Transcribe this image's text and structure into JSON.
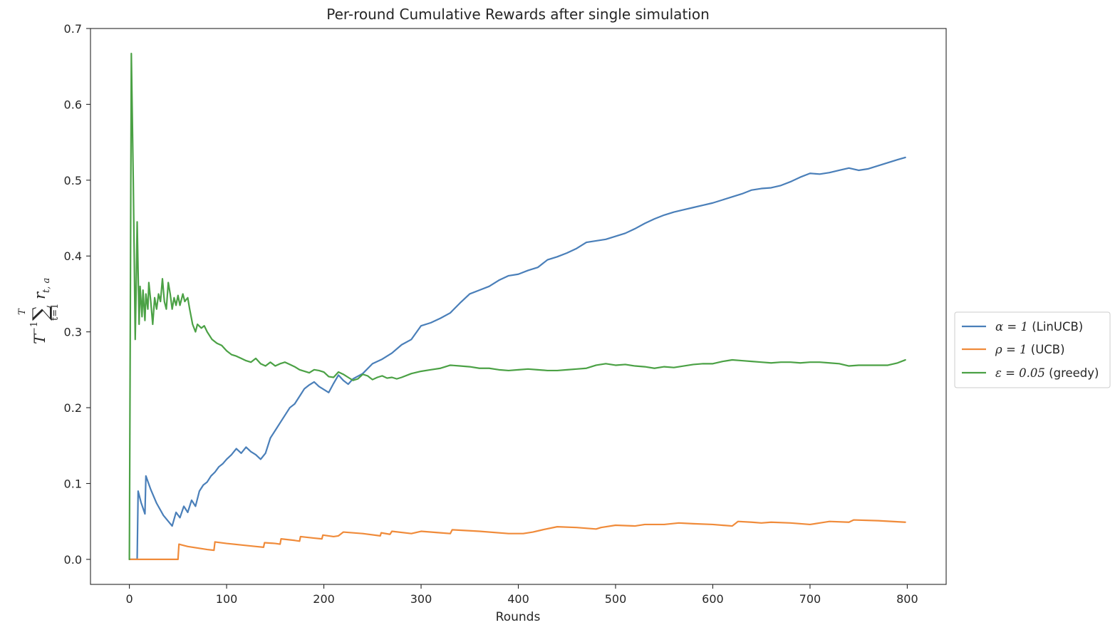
{
  "chart_data": {
    "type": "line",
    "title": "Per-round Cumulative Rewards after single simulation",
    "xlabel": "Rounds",
    "ylabel": {
      "prefix": "T",
      "exponent": "−1",
      "sum_symbol": "∑",
      "sum_upper": "T",
      "sum_lower": "t=1",
      "term": "r",
      "term_sub": "t, a"
    },
    "xlim": [
      -40,
      840
    ],
    "ylim": [
      -0.033,
      0.7
    ],
    "xticks": [
      0,
      100,
      200,
      300,
      400,
      500,
      600,
      700,
      800
    ],
    "xtick_labels": [
      "0",
      "100",
      "200",
      "300",
      "400",
      "500",
      "600",
      "700",
      "800"
    ],
    "yticks": [
      0.0,
      0.1,
      0.2,
      0.3,
      0.4,
      0.5,
      0.6,
      0.7
    ],
    "ytick_labels": [
      "0.0",
      "0.1",
      "0.2",
      "0.3",
      "0.4",
      "0.5",
      "0.6",
      "0.7"
    ],
    "grid": false,
    "legend_position": "center-right, outside plot",
    "series": [
      {
        "name": "α = 1 (LinUCB)",
        "legend_math": "α = 1",
        "legend_rest": " (LinUCB)",
        "color": "#4a7fb9",
        "points": [
          [
            0,
            0.0
          ],
          [
            8,
            0.0
          ],
          [
            9,
            0.09
          ],
          [
            12,
            0.075
          ],
          [
            16,
            0.06
          ],
          [
            17,
            0.11
          ],
          [
            22,
            0.092
          ],
          [
            28,
            0.074
          ],
          [
            35,
            0.058
          ],
          [
            44,
            0.044
          ],
          [
            48,
            0.062
          ],
          [
            52,
            0.055
          ],
          [
            56,
            0.07
          ],
          [
            60,
            0.062
          ],
          [
            64,
            0.078
          ],
          [
            68,
            0.07
          ],
          [
            72,
            0.09
          ],
          [
            76,
            0.098
          ],
          [
            80,
            0.102
          ],
          [
            84,
            0.11
          ],
          [
            88,
            0.115
          ],
          [
            92,
            0.122
          ],
          [
            96,
            0.126
          ],
          [
            100,
            0.132
          ],
          [
            105,
            0.138
          ],
          [
            110,
            0.146
          ],
          [
            115,
            0.14
          ],
          [
            120,
            0.148
          ],
          [
            125,
            0.142
          ],
          [
            130,
            0.138
          ],
          [
            135,
            0.132
          ],
          [
            140,
            0.14
          ],
          [
            145,
            0.16
          ],
          [
            150,
            0.17
          ],
          [
            155,
            0.18
          ],
          [
            160,
            0.19
          ],
          [
            165,
            0.2
          ],
          [
            170,
            0.205
          ],
          [
            175,
            0.215
          ],
          [
            180,
            0.225
          ],
          [
            185,
            0.23
          ],
          [
            190,
            0.234
          ],
          [
            195,
            0.228
          ],
          [
            200,
            0.224
          ],
          [
            205,
            0.22
          ],
          [
            210,
            0.232
          ],
          [
            215,
            0.243
          ],
          [
            220,
            0.236
          ],
          [
            225,
            0.231
          ],
          [
            230,
            0.238
          ],
          [
            240,
            0.245
          ],
          [
            250,
            0.258
          ],
          [
            260,
            0.264
          ],
          [
            270,
            0.272
          ],
          [
            280,
            0.283
          ],
          [
            290,
            0.29
          ],
          [
            300,
            0.308
          ],
          [
            310,
            0.312
          ],
          [
            320,
            0.318
          ],
          [
            330,
            0.325
          ],
          [
            340,
            0.338
          ],
          [
            350,
            0.35
          ],
          [
            360,
            0.355
          ],
          [
            370,
            0.36
          ],
          [
            380,
            0.368
          ],
          [
            390,
            0.374
          ],
          [
            400,
            0.376
          ],
          [
            410,
            0.381
          ],
          [
            420,
            0.385
          ],
          [
            430,
            0.395
          ],
          [
            440,
            0.399
          ],
          [
            450,
            0.404
          ],
          [
            460,
            0.41
          ],
          [
            470,
            0.418
          ],
          [
            480,
            0.42
          ],
          [
            490,
            0.422
          ],
          [
            500,
            0.426
          ],
          [
            510,
            0.43
          ],
          [
            520,
            0.436
          ],
          [
            530,
            0.443
          ],
          [
            540,
            0.449
          ],
          [
            550,
            0.454
          ],
          [
            560,
            0.458
          ],
          [
            570,
            0.461
          ],
          [
            580,
            0.464
          ],
          [
            590,
            0.467
          ],
          [
            600,
            0.47
          ],
          [
            610,
            0.474
          ],
          [
            620,
            0.478
          ],
          [
            630,
            0.482
          ],
          [
            640,
            0.487
          ],
          [
            650,
            0.489
          ],
          [
            660,
            0.49
          ],
          [
            670,
            0.493
          ],
          [
            680,
            0.498
          ],
          [
            690,
            0.504
          ],
          [
            700,
            0.509
          ],
          [
            710,
            0.508
          ],
          [
            720,
            0.51
          ],
          [
            730,
            0.513
          ],
          [
            740,
            0.516
          ],
          [
            750,
            0.513
          ],
          [
            760,
            0.515
          ],
          [
            770,
            0.519
          ],
          [
            780,
            0.523
          ],
          [
            790,
            0.527
          ],
          [
            798,
            0.53
          ]
        ]
      },
      {
        "name": "ρ = 1 (UCB)",
        "legend_math": "ρ = 1",
        "legend_rest": " (UCB)",
        "color": "#f08b3a",
        "points": [
          [
            0,
            0.0
          ],
          [
            50,
            0.0
          ],
          [
            51,
            0.02
          ],
          [
            60,
            0.017
          ],
          [
            70,
            0.015
          ],
          [
            80,
            0.013
          ],
          [
            87,
            0.012
          ],
          [
            88,
            0.023
          ],
          [
            100,
            0.021
          ],
          [
            115,
            0.019
          ],
          [
            130,
            0.017
          ],
          [
            138,
            0.016
          ],
          [
            139,
            0.022
          ],
          [
            150,
            0.021
          ],
          [
            155,
            0.02
          ],
          [
            156,
            0.027
          ],
          [
            170,
            0.025
          ],
          [
            175,
            0.024
          ],
          [
            176,
            0.03
          ],
          [
            190,
            0.028
          ],
          [
            198,
            0.027
          ],
          [
            199,
            0.032
          ],
          [
            210,
            0.03
          ],
          [
            215,
            0.031
          ],
          [
            220,
            0.036
          ],
          [
            240,
            0.034
          ],
          [
            258,
            0.031
          ],
          [
            259,
            0.035
          ],
          [
            268,
            0.033
          ],
          [
            270,
            0.037
          ],
          [
            290,
            0.034
          ],
          [
            300,
            0.037
          ],
          [
            320,
            0.035
          ],
          [
            330,
            0.034
          ],
          [
            332,
            0.039
          ],
          [
            360,
            0.037
          ],
          [
            390,
            0.034
          ],
          [
            405,
            0.034
          ],
          [
            415,
            0.036
          ],
          [
            425,
            0.039
          ],
          [
            440,
            0.043
          ],
          [
            460,
            0.042
          ],
          [
            480,
            0.04
          ],
          [
            485,
            0.042
          ],
          [
            500,
            0.045
          ],
          [
            520,
            0.044
          ],
          [
            530,
            0.046
          ],
          [
            550,
            0.046
          ],
          [
            565,
            0.048
          ],
          [
            580,
            0.047
          ],
          [
            600,
            0.046
          ],
          [
            620,
            0.044
          ],
          [
            626,
            0.05
          ],
          [
            640,
            0.049
          ],
          [
            650,
            0.048
          ],
          [
            660,
            0.049
          ],
          [
            680,
            0.048
          ],
          [
            700,
            0.046
          ],
          [
            710,
            0.048
          ],
          [
            720,
            0.05
          ],
          [
            740,
            0.049
          ],
          [
            745,
            0.052
          ],
          [
            770,
            0.051
          ],
          [
            798,
            0.049
          ]
        ]
      },
      {
        "name": "ε = 0.05 (greedy)",
        "legend_math": "ε = 0.05",
        "legend_rest": " (greedy)",
        "color": "#4ba145",
        "points": [
          [
            0,
            0.0
          ],
          [
            2,
            0.667
          ],
          [
            4,
            0.5
          ],
          [
            5,
            0.4
          ],
          [
            6,
            0.29
          ],
          [
            7,
            0.36
          ],
          [
            8,
            0.445
          ],
          [
            10,
            0.31
          ],
          [
            11,
            0.36
          ],
          [
            13,
            0.32
          ],
          [
            14,
            0.355
          ],
          [
            16,
            0.315
          ],
          [
            17,
            0.35
          ],
          [
            19,
            0.33
          ],
          [
            20,
            0.365
          ],
          [
            22,
            0.34
          ],
          [
            24,
            0.31
          ],
          [
            26,
            0.345
          ],
          [
            28,
            0.33
          ],
          [
            30,
            0.35
          ],
          [
            32,
            0.34
          ],
          [
            34,
            0.37
          ],
          [
            36,
            0.34
          ],
          [
            38,
            0.33
          ],
          [
            40,
            0.365
          ],
          [
            42,
            0.35
          ],
          [
            44,
            0.33
          ],
          [
            46,
            0.345
          ],
          [
            48,
            0.335
          ],
          [
            50,
            0.348
          ],
          [
            52,
            0.335
          ],
          [
            55,
            0.35
          ],
          [
            57,
            0.34
          ],
          [
            60,
            0.345
          ],
          [
            62,
            0.33
          ],
          [
            65,
            0.31
          ],
          [
            68,
            0.3
          ],
          [
            70,
            0.31
          ],
          [
            74,
            0.305
          ],
          [
            77,
            0.308
          ],
          [
            80,
            0.3
          ],
          [
            85,
            0.29
          ],
          [
            90,
            0.285
          ],
          [
            95,
            0.282
          ],
          [
            100,
            0.275
          ],
          [
            105,
            0.27
          ],
          [
            110,
            0.268
          ],
          [
            115,
            0.265
          ],
          [
            120,
            0.262
          ],
          [
            125,
            0.26
          ],
          [
            130,
            0.265
          ],
          [
            135,
            0.258
          ],
          [
            140,
            0.255
          ],
          [
            145,
            0.26
          ],
          [
            150,
            0.255
          ],
          [
            155,
            0.258
          ],
          [
            160,
            0.26
          ],
          [
            165,
            0.257
          ],
          [
            170,
            0.254
          ],
          [
            175,
            0.25
          ],
          [
            180,
            0.248
          ],
          [
            185,
            0.246
          ],
          [
            190,
            0.25
          ],
          [
            195,
            0.249
          ],
          [
            200,
            0.247
          ],
          [
            205,
            0.241
          ],
          [
            210,
            0.24
          ],
          [
            215,
            0.247
          ],
          [
            220,
            0.244
          ],
          [
            225,
            0.24
          ],
          [
            230,
            0.236
          ],
          [
            235,
            0.238
          ],
          [
            240,
            0.244
          ],
          [
            245,
            0.242
          ],
          [
            250,
            0.237
          ],
          [
            255,
            0.24
          ],
          [
            260,
            0.242
          ],
          [
            265,
            0.239
          ],
          [
            270,
            0.24
          ],
          [
            275,
            0.238
          ],
          [
            280,
            0.24
          ],
          [
            290,
            0.245
          ],
          [
            300,
            0.248
          ],
          [
            310,
            0.25
          ],
          [
            320,
            0.252
          ],
          [
            330,
            0.256
          ],
          [
            340,
            0.255
          ],
          [
            350,
            0.254
          ],
          [
            360,
            0.252
          ],
          [
            370,
            0.252
          ],
          [
            380,
            0.25
          ],
          [
            390,
            0.249
          ],
          [
            400,
            0.25
          ],
          [
            410,
            0.251
          ],
          [
            420,
            0.25
          ],
          [
            430,
            0.249
          ],
          [
            440,
            0.249
          ],
          [
            450,
            0.25
          ],
          [
            460,
            0.251
          ],
          [
            470,
            0.252
          ],
          [
            480,
            0.256
          ],
          [
            490,
            0.258
          ],
          [
            500,
            0.256
          ],
          [
            510,
            0.257
          ],
          [
            520,
            0.255
          ],
          [
            530,
            0.254
          ],
          [
            540,
            0.252
          ],
          [
            550,
            0.254
          ],
          [
            560,
            0.253
          ],
          [
            570,
            0.255
          ],
          [
            580,
            0.257
          ],
          [
            590,
            0.258
          ],
          [
            600,
            0.258
          ],
          [
            610,
            0.261
          ],
          [
            620,
            0.263
          ],
          [
            630,
            0.262
          ],
          [
            640,
            0.261
          ],
          [
            650,
            0.26
          ],
          [
            660,
            0.259
          ],
          [
            670,
            0.26
          ],
          [
            680,
            0.26
          ],
          [
            690,
            0.259
          ],
          [
            700,
            0.26
          ],
          [
            710,
            0.26
          ],
          [
            720,
            0.259
          ],
          [
            730,
            0.258
          ],
          [
            740,
            0.255
          ],
          [
            750,
            0.256
          ],
          [
            760,
            0.256
          ],
          [
            770,
            0.256
          ],
          [
            780,
            0.256
          ],
          [
            790,
            0.259
          ],
          [
            798,
            0.263
          ]
        ]
      }
    ]
  }
}
